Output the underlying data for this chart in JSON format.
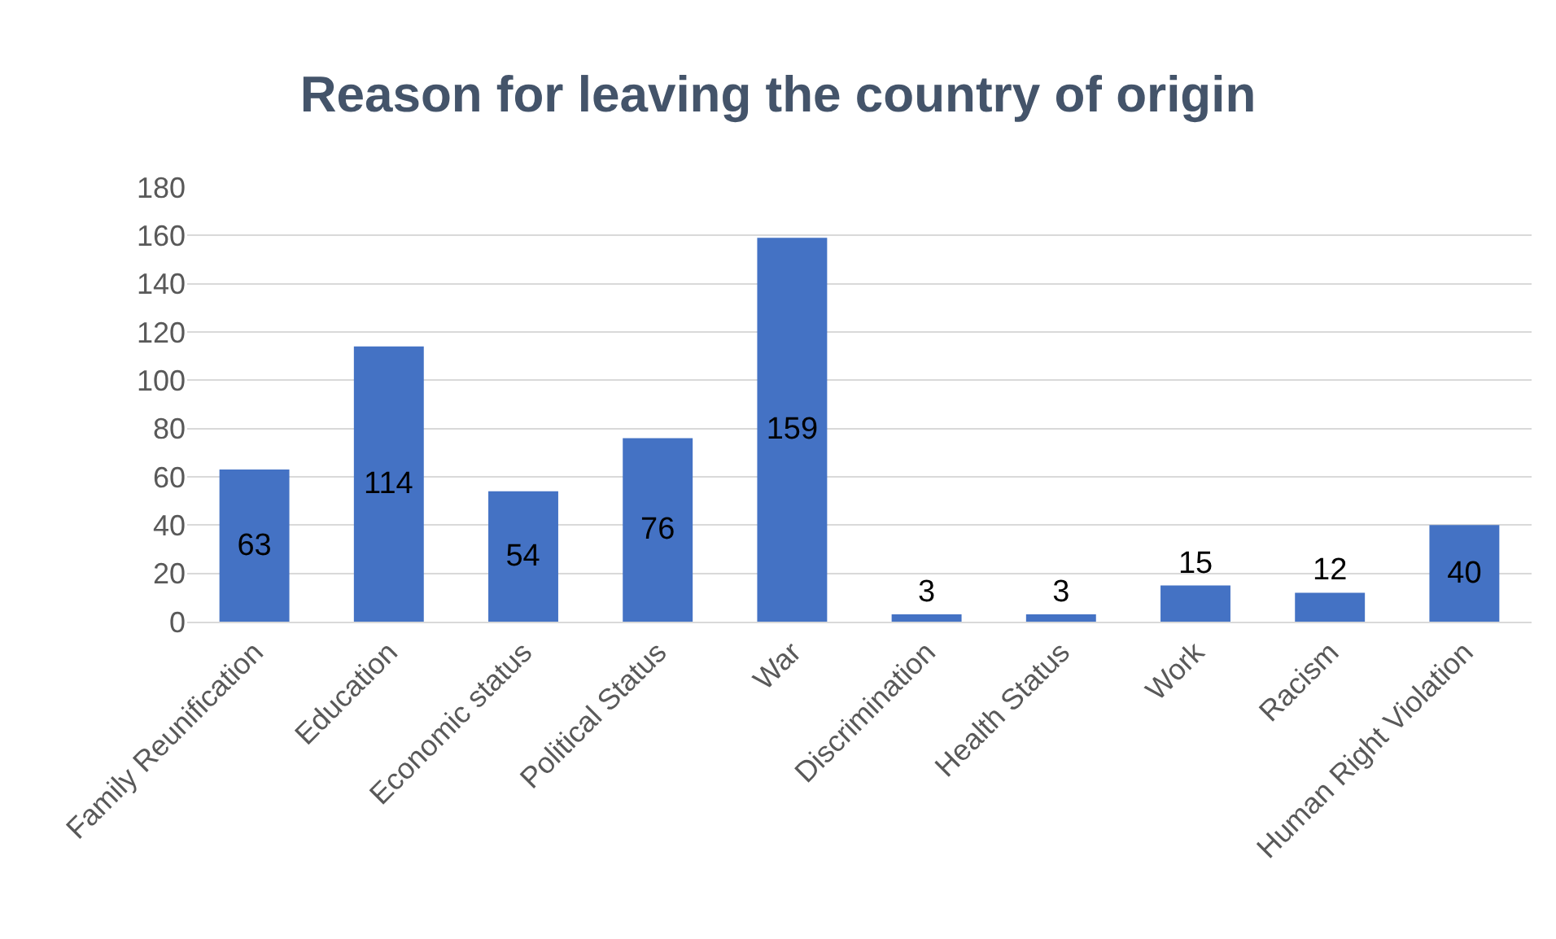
{
  "chart_data": {
    "type": "bar",
    "title": "Reason for leaving the country of origin",
    "categories": [
      "Family Reunification",
      "Education",
      "Economic status",
      "Political Status",
      "War",
      "Discrimination",
      "Health Status",
      "Work",
      "Racism",
      "Human Right Violation"
    ],
    "values": [
      63,
      114,
      54,
      76,
      159,
      3,
      3,
      15,
      12,
      40
    ],
    "color": "#4472c4",
    "ylim": [
      0,
      180
    ],
    "yticks": [
      0,
      20,
      40,
      60,
      80,
      100,
      120,
      140,
      160,
      180
    ],
    "grid": "y",
    "data_labels": true
  }
}
